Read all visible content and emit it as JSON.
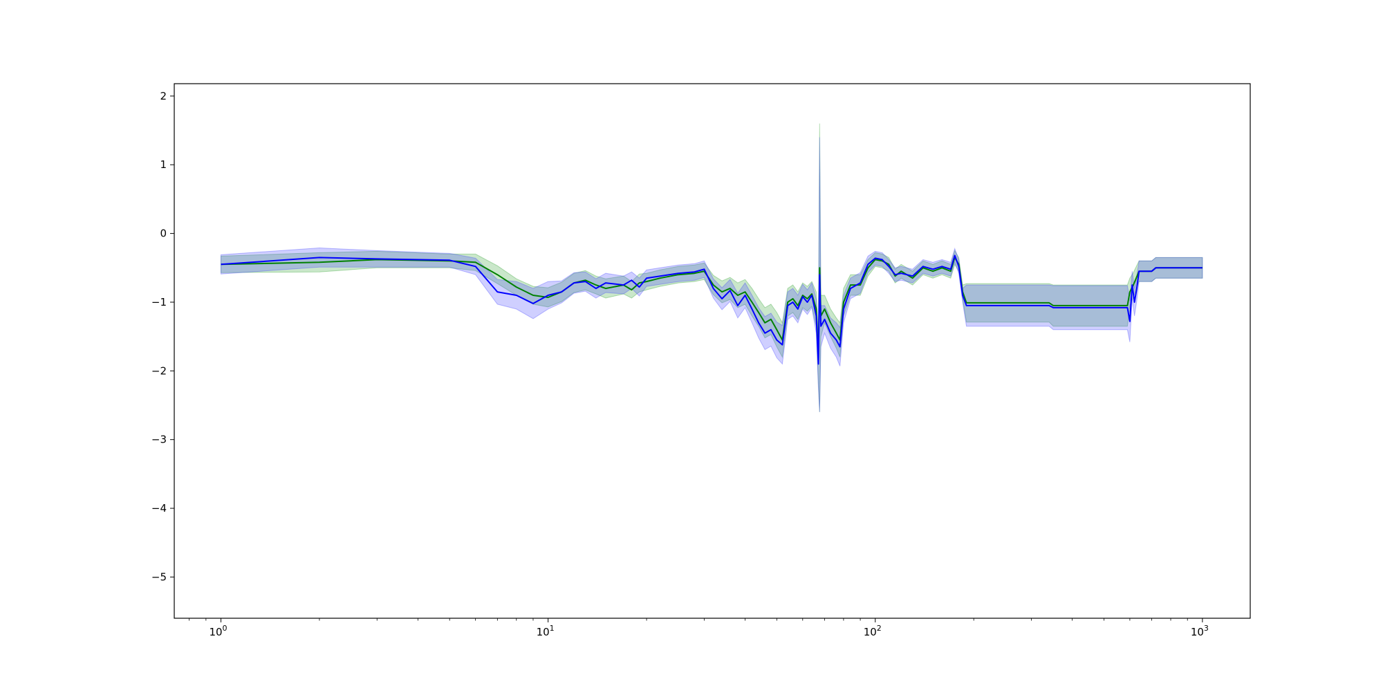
{
  "chart_data": {
    "type": "line",
    "x_scale": "log",
    "xlim": [
      0.72,
      1400
    ],
    "ylim": [
      -5.6,
      2.18
    ],
    "x_ticks": [
      {
        "value": 1,
        "base": "10",
        "exp": "0"
      },
      {
        "value": 10,
        "base": "10",
        "exp": "1"
      },
      {
        "value": 100,
        "base": "10",
        "exp": "2"
      },
      {
        "value": 1000,
        "base": "10",
        "exp": "3"
      }
    ],
    "y_ticks": [
      {
        "value": 2,
        "label": "2"
      },
      {
        "value": 1,
        "label": "1"
      },
      {
        "value": 0,
        "label": "0"
      },
      {
        "value": -1,
        "label": "−1"
      },
      {
        "value": -2,
        "label": "−2"
      },
      {
        "value": -3,
        "label": "−3"
      },
      {
        "value": -4,
        "label": "−4"
      },
      {
        "value": -5,
        "label": "−5"
      }
    ],
    "grid": false,
    "legend": "none",
    "series": [
      {
        "color": "#008000",
        "band_color": "#2ca02c",
        "points": [
          [
            1,
            -0.45,
            0.12
          ],
          [
            2,
            -0.42,
            0.14
          ],
          [
            3,
            -0.38,
            0.12
          ],
          [
            5,
            -0.4,
            0.1
          ],
          [
            6,
            -0.42,
            0.12
          ],
          [
            7,
            -0.6,
            0.13
          ],
          [
            8,
            -0.78,
            0.12
          ],
          [
            9,
            -0.9,
            0.13
          ],
          [
            10,
            -0.93,
            0.14
          ],
          [
            11,
            -0.85,
            0.14
          ],
          [
            12,
            -0.72,
            0.14
          ],
          [
            13,
            -0.68,
            0.14
          ],
          [
            14,
            -0.75,
            0.13
          ],
          [
            15,
            -0.8,
            0.14
          ],
          [
            17,
            -0.75,
            0.13
          ],
          [
            18,
            -0.82,
            0.12
          ],
          [
            19,
            -0.72,
            0.13
          ],
          [
            20,
            -0.7,
            0.12
          ],
          [
            22,
            -0.65,
            0.12
          ],
          [
            25,
            -0.6,
            0.12
          ],
          [
            28,
            -0.58,
            0.12
          ],
          [
            30,
            -0.55,
            0.12
          ],
          [
            32,
            -0.75,
            0.14
          ],
          [
            34,
            -0.85,
            0.16
          ],
          [
            36,
            -0.8,
            0.16
          ],
          [
            38,
            -0.9,
            0.18
          ],
          [
            40,
            -0.85,
            0.18
          ],
          [
            42,
            -1.0,
            0.2
          ],
          [
            44,
            -1.15,
            0.2
          ],
          [
            46,
            -1.3,
            0.22
          ],
          [
            48,
            -1.25,
            0.22
          ],
          [
            50,
            -1.4,
            0.25
          ],
          [
            52,
            -1.55,
            0.25
          ],
          [
            54,
            -1.0,
            0.2
          ],
          [
            56,
            -0.95,
            0.2
          ],
          [
            58,
            -1.05,
            0.2
          ],
          [
            60,
            -0.9,
            0.18
          ],
          [
            62,
            -0.95,
            0.18
          ],
          [
            64,
            -0.88,
            0.18
          ],
          [
            66,
            -1.1,
            0.25
          ],
          [
            67,
            -1.85,
            0.35
          ],
          [
            67.6,
            -0.5,
            2.1
          ],
          [
            68.2,
            -1.2,
            0.3
          ],
          [
            70,
            -1.1,
            0.2
          ],
          [
            73,
            -1.3,
            0.2
          ],
          [
            76,
            -1.45,
            0.22
          ],
          [
            78,
            -1.55,
            0.25
          ],
          [
            80,
            -1.0,
            0.2
          ],
          [
            84,
            -0.75,
            0.15
          ],
          [
            90,
            -0.75,
            0.15
          ],
          [
            95,
            -0.5,
            0.12
          ],
          [
            100,
            -0.38,
            0.1
          ],
          [
            105,
            -0.4,
            0.1
          ],
          [
            110,
            -0.45,
            0.1
          ],
          [
            115,
            -0.62,
            0.1
          ],
          [
            120,
            -0.55,
            0.1
          ],
          [
            130,
            -0.65,
            0.1
          ],
          [
            140,
            -0.5,
            0.1
          ],
          [
            150,
            -0.55,
            0.1
          ],
          [
            160,
            -0.5,
            0.1
          ],
          [
            170,
            -0.55,
            0.1
          ],
          [
            175,
            -0.35,
            0.1
          ],
          [
            180,
            -0.45,
            0.1
          ],
          [
            185,
            -0.85,
            0.1
          ],
          [
            190,
            -1.01,
            0.28
          ],
          [
            340,
            -1.01,
            0.28
          ],
          [
            350,
            -1.05,
            0.3
          ],
          [
            590,
            -1.05,
            0.3
          ],
          [
            600,
            -0.85,
            0.2
          ],
          [
            615,
            -0.75,
            0.18
          ],
          [
            640,
            -0.55,
            0.15
          ],
          [
            700,
            -0.55,
            0.15
          ],
          [
            720,
            -0.5,
            0.15
          ],
          [
            1000,
            -0.5,
            0.15
          ]
        ]
      },
      {
        "color": "#0000ff",
        "band_color": "#4040ff",
        "points": [
          [
            1,
            -0.45,
            0.14
          ],
          [
            2,
            -0.35,
            0.14
          ],
          [
            3,
            -0.37,
            0.12
          ],
          [
            5,
            -0.39,
            0.1
          ],
          [
            6,
            -0.48,
            0.12
          ],
          [
            7,
            -0.85,
            0.18
          ],
          [
            8,
            -0.9,
            0.2
          ],
          [
            9,
            -1.02,
            0.22
          ],
          [
            10,
            -0.9,
            0.2
          ],
          [
            11,
            -0.85,
            0.16
          ],
          [
            12,
            -0.72,
            0.15
          ],
          [
            13,
            -0.7,
            0.14
          ],
          [
            14,
            -0.8,
            0.14
          ],
          [
            15,
            -0.72,
            0.14
          ],
          [
            17,
            -0.75,
            0.13
          ],
          [
            18,
            -0.68,
            0.12
          ],
          [
            19,
            -0.78,
            0.13
          ],
          [
            20,
            -0.65,
            0.12
          ],
          [
            22,
            -0.62,
            0.12
          ],
          [
            25,
            -0.58,
            0.12
          ],
          [
            28,
            -0.56,
            0.12
          ],
          [
            30,
            -0.52,
            0.12
          ],
          [
            32,
            -0.8,
            0.14
          ],
          [
            34,
            -0.95,
            0.16
          ],
          [
            36,
            -0.83,
            0.16
          ],
          [
            38,
            -1.05,
            0.18
          ],
          [
            40,
            -0.9,
            0.18
          ],
          [
            42,
            -1.1,
            0.2
          ],
          [
            44,
            -1.3,
            0.22
          ],
          [
            46,
            -1.45,
            0.24
          ],
          [
            48,
            -1.4,
            0.24
          ],
          [
            50,
            -1.55,
            0.26
          ],
          [
            52,
            -1.62,
            0.28
          ],
          [
            54,
            -1.05,
            0.2
          ],
          [
            56,
            -1.0,
            0.2
          ],
          [
            58,
            -1.1,
            0.2
          ],
          [
            60,
            -0.92,
            0.18
          ],
          [
            62,
            -1.0,
            0.18
          ],
          [
            64,
            -0.9,
            0.18
          ],
          [
            66,
            -1.2,
            0.25
          ],
          [
            67,
            -1.9,
            0.35
          ],
          [
            67.6,
            -0.6,
            2.0
          ],
          [
            68.2,
            -1.35,
            0.3
          ],
          [
            70,
            -1.25,
            0.2
          ],
          [
            73,
            -1.45,
            0.22
          ],
          [
            76,
            -1.55,
            0.25
          ],
          [
            78,
            -1.65,
            0.28
          ],
          [
            80,
            -1.1,
            0.2
          ],
          [
            84,
            -0.8,
            0.15
          ],
          [
            90,
            -0.72,
            0.15
          ],
          [
            95,
            -0.45,
            0.12
          ],
          [
            100,
            -0.36,
            0.1
          ],
          [
            105,
            -0.38,
            0.1
          ],
          [
            110,
            -0.48,
            0.1
          ],
          [
            115,
            -0.6,
            0.1
          ],
          [
            120,
            -0.58,
            0.1
          ],
          [
            130,
            -0.62,
            0.1
          ],
          [
            140,
            -0.48,
            0.1
          ],
          [
            150,
            -0.52,
            0.1
          ],
          [
            160,
            -0.48,
            0.1
          ],
          [
            170,
            -0.52,
            0.1
          ],
          [
            175,
            -0.32,
            0.1
          ],
          [
            180,
            -0.48,
            0.1
          ],
          [
            185,
            -0.9,
            0.1
          ],
          [
            190,
            -1.05,
            0.3
          ],
          [
            340,
            -1.05,
            0.3
          ],
          [
            350,
            -1.08,
            0.32
          ],
          [
            590,
            -1.08,
            0.32
          ],
          [
            600,
            -1.28,
            0.3
          ],
          [
            610,
            -0.75,
            0.2
          ],
          [
            620,
            -1.0,
            0.2
          ],
          [
            630,
            -0.8,
            0.18
          ],
          [
            640,
            -0.55,
            0.15
          ],
          [
            700,
            -0.55,
            0.15
          ],
          [
            720,
            -0.5,
            0.15
          ],
          [
            1000,
            -0.5,
            0.15
          ]
        ]
      }
    ]
  }
}
